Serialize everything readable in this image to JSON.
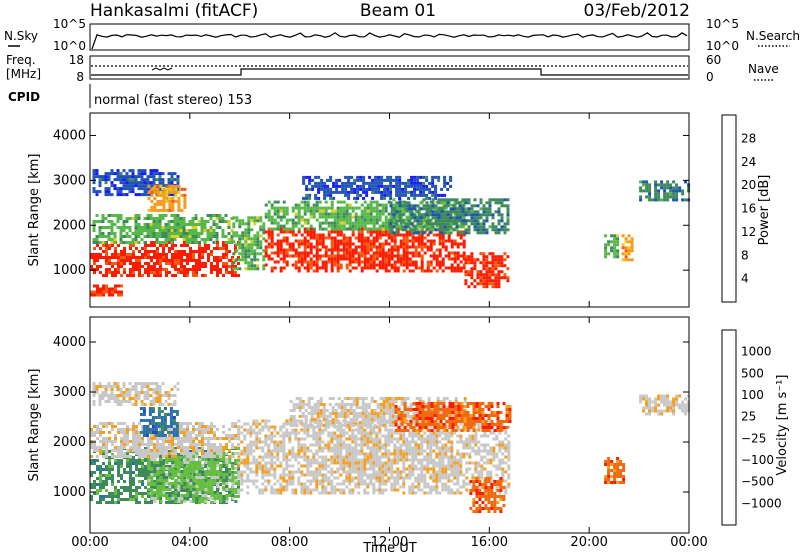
{
  "header": {
    "station": "Hankasalmi (fitACF)",
    "beam": "Beam 01",
    "date": "03/Feb/2012"
  },
  "sky_panel": {
    "left_label": "N.Sky",
    "right_label": "N.Search",
    "left_ticks": [
      "10^5",
      "10^0"
    ],
    "right_ticks": [
      "10^5",
      "10^0"
    ]
  },
  "freq_panel": {
    "left_label_1": "Freq.",
    "left_label_2": "[MHz]",
    "left_ticks": [
      "18",
      "8"
    ],
    "right_label": "Nave",
    "right_ticks": [
      "60",
      "0"
    ]
  },
  "cpid": {
    "label": "CPID",
    "text": "normal (fast stereo) 153"
  },
  "colors": {
    "power": [
      "#1a1aff",
      "#2155b5",
      "#3f8a5c",
      "#55b848",
      "#e6cc20",
      "#f59a1a",
      "#f25a12",
      "#ff1a00"
    ],
    "velocity": [
      "#ff1a00",
      "#f06a10",
      "#f5a020",
      "#c8c8c8",
      "#c8c8c8",
      "#66c040",
      "#3f8a5c",
      "#2a6fb0",
      "#2244cc"
    ]
  },
  "chart_data": [
    {
      "type": "heatmap",
      "name": "power",
      "ylabel": "Slant Range [km]",
      "ylim": [
        180,
        4500
      ],
      "yticks": [
        "1000",
        "2000",
        "3000",
        "4000"
      ],
      "xlim_hours": [
        0,
        24
      ],
      "colorbar": {
        "label": "Power [dB]",
        "range": [
          0,
          32
        ],
        "ticks": [
          "4",
          "8",
          "12",
          "16",
          "20",
          "24",
          "28"
        ]
      },
      "regions": [
        {
          "t0": 0.0,
          "t1": 5.9,
          "r0": 860,
          "r1": 1650,
          "level": 7
        },
        {
          "t0": 0.1,
          "t1": 5.7,
          "r0": 1600,
          "r1": 2250,
          "level": 3
        },
        {
          "t0": 0.0,
          "t1": 1.3,
          "r0": 420,
          "r1": 680,
          "level": 7
        },
        {
          "t0": 0.1,
          "t1": 3.5,
          "r0": 2700,
          "r1": 3250,
          "level": 1
        },
        {
          "t0": 2.3,
          "t1": 3.8,
          "r0": 2300,
          "r1": 2900,
          "level": 5
        },
        {
          "t0": 5.7,
          "t1": 7.0,
          "r0": 1000,
          "r1": 2200,
          "level": 3
        },
        {
          "t0": 7.0,
          "t1": 15.0,
          "r0": 950,
          "r1": 1950,
          "level": 7
        },
        {
          "t0": 7.0,
          "t1": 15.0,
          "r0": 1900,
          "r1": 2550,
          "level": 3
        },
        {
          "t0": 15.0,
          "t1": 16.7,
          "r0": 650,
          "r1": 1400,
          "level": 7
        },
        {
          "t0": 12.0,
          "t1": 16.8,
          "r0": 1800,
          "r1": 2600,
          "level": 2
        },
        {
          "t0": 8.5,
          "t1": 14.5,
          "r0": 2600,
          "r1": 3100,
          "level": 1
        },
        {
          "t0": 20.6,
          "t1": 21.2,
          "r0": 1300,
          "r1": 1800,
          "level": 3
        },
        {
          "t0": 21.3,
          "t1": 21.7,
          "r0": 1250,
          "r1": 1800,
          "level": 5
        },
        {
          "t0": 22.0,
          "t1": 24.0,
          "r0": 2550,
          "r1": 3000,
          "level": 2
        }
      ]
    },
    {
      "type": "heatmap",
      "name": "velocity",
      "ylabel": "Slant Range [km]",
      "xlabel": "Time UT",
      "ylim": [
        180,
        4500
      ],
      "yticks": [
        "1000",
        "2000",
        "3000",
        "4000"
      ],
      "xlim_hours": [
        0,
        24
      ],
      "xticks": [
        "00:00",
        "04:00",
        "08:00",
        "12:00",
        "16:00",
        "20:00",
        "00:00"
      ],
      "colorbar": {
        "label": "Velocity [m s⁻¹]",
        "ticks": [
          "1000",
          "500",
          "100",
          "25",
          "−25",
          "−100",
          "−500",
          "−1000"
        ]
      },
      "regions": [
        {
          "t0": 0.0,
          "t1": 5.9,
          "r0": 780,
          "r1": 1900,
          "level": 6
        },
        {
          "t0": 2.3,
          "t1": 5.8,
          "r0": 800,
          "r1": 1800,
          "level": 5
        },
        {
          "t0": 0.0,
          "t1": 6.0,
          "r0": 1700,
          "r1": 2400,
          "level": 3
        },
        {
          "t0": 0.1,
          "t1": 3.5,
          "r0": 2750,
          "r1": 3200,
          "level": 3
        },
        {
          "t0": 2.0,
          "t1": 3.5,
          "r0": 2100,
          "r1": 2700,
          "level": 7
        },
        {
          "t0": 5.9,
          "t1": 16.8,
          "r0": 950,
          "r1": 2450,
          "level": 3
        },
        {
          "t0": 8.0,
          "t1": 15.0,
          "r0": 2300,
          "r1": 2900,
          "level": 3
        },
        {
          "t0": 15.2,
          "t1": 16.6,
          "r0": 620,
          "r1": 1300,
          "level": 1
        },
        {
          "t0": 12.2,
          "t1": 16.8,
          "r0": 2200,
          "r1": 2800,
          "level": 1
        },
        {
          "t0": 20.6,
          "t1": 21.4,
          "r0": 1200,
          "r1": 1700,
          "level": 1
        },
        {
          "t0": 22.0,
          "t1": 24.0,
          "r0": 2550,
          "r1": 2950,
          "level": 3
        }
      ]
    }
  ]
}
